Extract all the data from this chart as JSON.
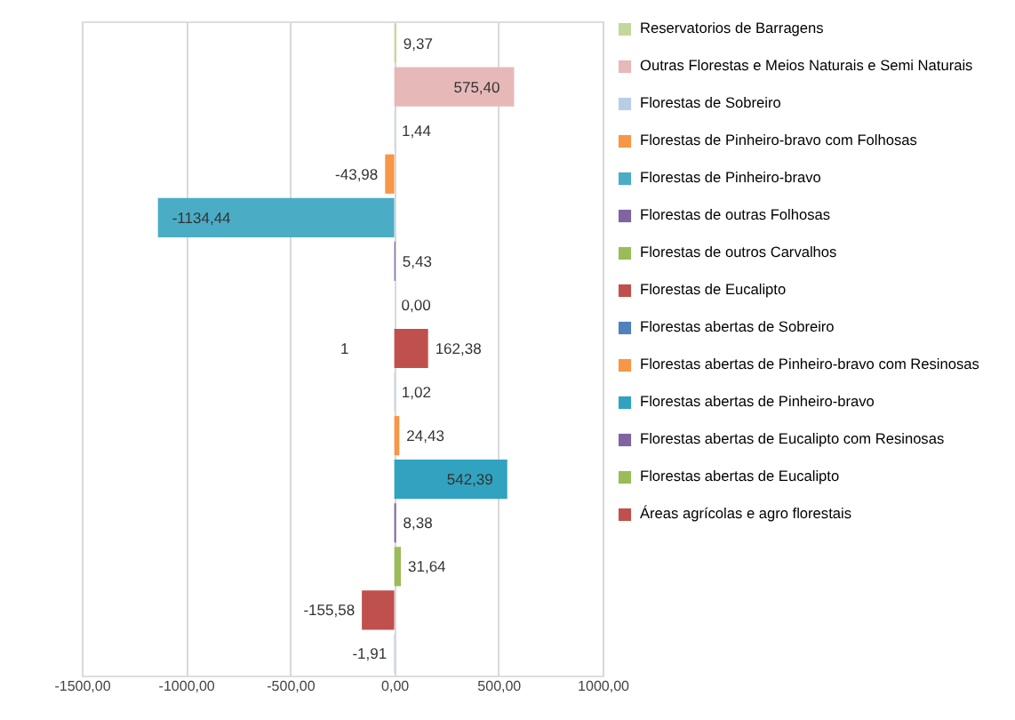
{
  "chart_data": {
    "type": "bar",
    "orientation": "horizontal",
    "categories": [
      null,
      null,
      null,
      null,
      null,
      null,
      null,
      null,
      null,
      null,
      null,
      null,
      null,
      null,
      null
    ],
    "series": [
      {
        "name": "Reservatorios de Barragens",
        "color": "#c4d79b",
        "values": [
          9.37,
          null,
          null,
          null,
          null,
          null,
          null,
          null,
          null,
          null,
          null,
          null,
          null,
          null,
          null
        ],
        "value_labels": [
          "9,37",
          null,
          null,
          null,
          null,
          null,
          null,
          null,
          null,
          null,
          null,
          null,
          null,
          null,
          null
        ]
      },
      {
        "name": "Outras Florestas e Meios Naturais e Semi Naturais",
        "color": "#e6b9b8",
        "values": [
          null,
          575.4,
          null,
          null,
          null,
          null,
          null,
          null,
          null,
          null,
          null,
          null,
          null,
          null,
          null
        ],
        "value_labels": [
          null,
          "575,40",
          null,
          null,
          null,
          null,
          null,
          null,
          null,
          null,
          null,
          null,
          null,
          null,
          null
        ]
      },
      {
        "name": "Florestas de Sobreiro",
        "color": "#b9cde5",
        "values": [
          null,
          null,
          1.44,
          null,
          null,
          null,
          null,
          null,
          null,
          null,
          null,
          null,
          null,
          null,
          null
        ],
        "value_labels": [
          null,
          null,
          "1,44",
          null,
          null,
          null,
          null,
          null,
          null,
          null,
          null,
          null,
          null,
          null,
          null
        ]
      },
      {
        "name": "Florestas de Pinheiro-bravo com Folhosas",
        "color": "#f79646",
        "values": [
          null,
          null,
          null,
          -43.98,
          null,
          null,
          null,
          null,
          null,
          null,
          null,
          null,
          null,
          null,
          null
        ],
        "value_labels": [
          null,
          null,
          null,
          "-43,98",
          null,
          null,
          null,
          null,
          null,
          null,
          null,
          null,
          null,
          null,
          null
        ]
      },
      {
        "name": "Florestas de Pinheiro-bravo",
        "color": "#4bacc6",
        "values": [
          null,
          null,
          null,
          null,
          -1134.44,
          null,
          null,
          null,
          null,
          null,
          null,
          null,
          null,
          null,
          null
        ],
        "value_labels": [
          null,
          null,
          null,
          null,
          "-1134,44",
          null,
          null,
          null,
          null,
          null,
          null,
          null,
          null,
          null,
          null
        ]
      },
      {
        "name": "Florestas de outras Folhosas",
        "color": "#8064a2",
        "values": [
          null,
          null,
          null,
          null,
          null,
          5.43,
          null,
          null,
          null,
          null,
          null,
          null,
          null,
          null,
          null
        ],
        "value_labels": [
          null,
          null,
          null,
          null,
          null,
          "5,43",
          null,
          null,
          null,
          null,
          null,
          null,
          null,
          null,
          null
        ]
      },
      {
        "name": "Florestas de outros Carvalhos",
        "color": "#9bbb59",
        "values": [
          null,
          null,
          null,
          null,
          null,
          null,
          0.0,
          null,
          null,
          null,
          null,
          null,
          null,
          null,
          null
        ],
        "value_labels": [
          null,
          null,
          null,
          null,
          null,
          null,
          "0,00",
          null,
          null,
          null,
          null,
          null,
          null,
          null,
          null
        ]
      },
      {
        "name": "Florestas de Eucalipto",
        "color": "#c0504d",
        "values": [
          null,
          null,
          null,
          null,
          null,
          null,
          null,
          162.38,
          null,
          null,
          null,
          null,
          null,
          null,
          null
        ],
        "value_labels": [
          null,
          null,
          null,
          null,
          null,
          null,
          null,
          "162,38",
          null,
          null,
          null,
          null,
          null,
          null,
          null
        ]
      },
      {
        "name": "Florestas abertas de Sobreiro",
        "color": "#4f81bd",
        "values": [
          null,
          null,
          null,
          null,
          null,
          null,
          null,
          null,
          1.02,
          null,
          null,
          null,
          null,
          null,
          null
        ],
        "value_labels": [
          null,
          null,
          null,
          null,
          null,
          null,
          null,
          null,
          "1,02",
          null,
          null,
          null,
          null,
          null,
          null
        ]
      },
      {
        "name": "Florestas abertas de Pinheiro-bravo com Resinosas",
        "color": "#f79646",
        "values": [
          null,
          null,
          null,
          null,
          null,
          null,
          null,
          null,
          null,
          24.43,
          null,
          null,
          null,
          null,
          null
        ],
        "value_labels": [
          null,
          null,
          null,
          null,
          null,
          null,
          null,
          null,
          null,
          "24,43",
          null,
          null,
          null,
          null,
          null
        ]
      },
      {
        "name": "Florestas abertas de Pinheiro-bravo",
        "color": "#31a2bf",
        "values": [
          null,
          null,
          null,
          null,
          null,
          null,
          null,
          null,
          null,
          null,
          542.39,
          null,
          null,
          null,
          null
        ],
        "value_labels": [
          null,
          null,
          null,
          null,
          null,
          null,
          null,
          null,
          null,
          null,
          "542,39",
          null,
          null,
          null,
          null
        ]
      },
      {
        "name": "Florestas abertas de Eucalipto com Resinosas",
        "color": "#8064a2",
        "values": [
          null,
          null,
          null,
          null,
          null,
          null,
          null,
          null,
          null,
          null,
          null,
          8.38,
          null,
          null,
          null
        ],
        "value_labels": [
          null,
          null,
          null,
          null,
          null,
          null,
          null,
          null,
          null,
          null,
          null,
          "8,38",
          null,
          null,
          null
        ]
      },
      {
        "name": "Florestas abertas de Eucalipto",
        "color": "#9bbb59",
        "values": [
          null,
          null,
          null,
          null,
          null,
          null,
          null,
          null,
          null,
          null,
          null,
          null,
          31.64,
          null,
          null
        ],
        "value_labels": [
          null,
          null,
          null,
          null,
          null,
          null,
          null,
          null,
          null,
          null,
          null,
          null,
          "31,64",
          null,
          null
        ]
      },
      {
        "name": "Áreas agrícolas e agro florestais",
        "color": "#c0504d",
        "values": [
          null,
          null,
          null,
          null,
          null,
          null,
          null,
          null,
          null,
          null,
          null,
          null,
          null,
          -155.58,
          null
        ],
        "value_labels": [
          null,
          null,
          null,
          null,
          null,
          null,
          null,
          null,
          null,
          null,
          null,
          null,
          null,
          "-155,58",
          null
        ]
      },
      {
        "color": "#95b3d7",
        "values": [
          null,
          null,
          null,
          null,
          null,
          null,
          null,
          null,
          null,
          null,
          null,
          null,
          null,
          null,
          -1.91
        ],
        "value_labels": [
          null,
          null,
          null,
          null,
          null,
          null,
          null,
          null,
          null,
          null,
          null,
          null,
          null,
          null,
          "-1,91"
        ]
      }
    ],
    "xlim": [
      -1500,
      1000
    ],
    "xticks": [
      {
        "value": -1500,
        "label": "-1500,00"
      },
      {
        "value": -1000,
        "label": "-1000,00"
      },
      {
        "value": -500,
        "label": "-500,00"
      },
      {
        "value": 0,
        "label": "0,00"
      },
      {
        "value": 500,
        "label": "500,00"
      },
      {
        "value": 1000,
        "label": "1000,00"
      }
    ],
    "grid": "x",
    "legend": "right",
    "annotations": [
      "1"
    ]
  }
}
